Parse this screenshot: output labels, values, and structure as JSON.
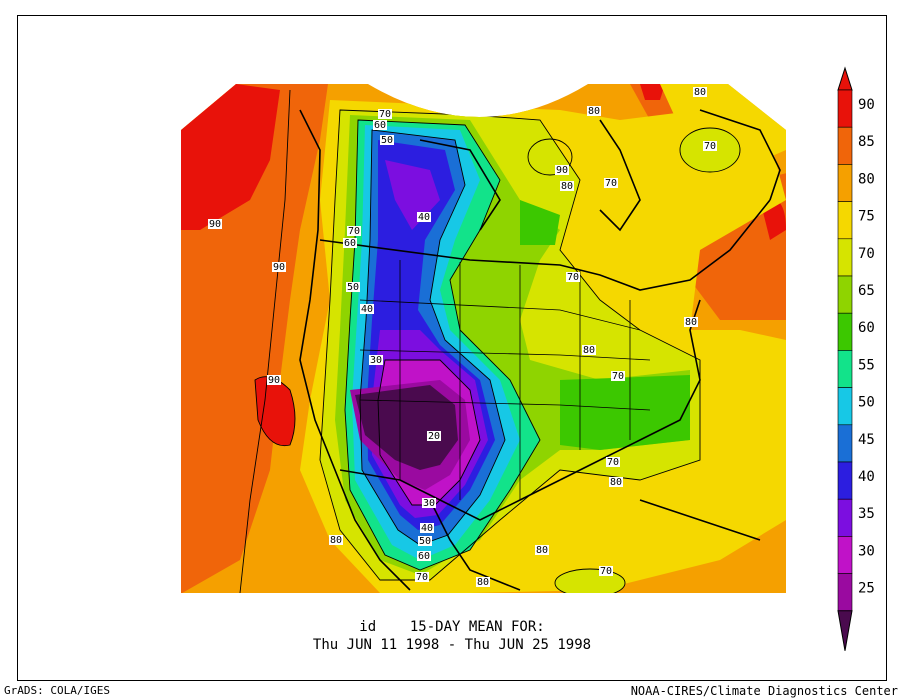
{
  "title": {
    "line1": "id    15-DAY MEAN FOR:",
    "line2": "Thu JUN 11 1998 - Thu JUN 25 1998"
  },
  "credits": {
    "left": "GrADS: COLA/IGES",
    "right": "NOAA-CIRES/Climate Diagnostics Center"
  },
  "legend": {
    "levels": [
      {
        "label": "90",
        "color": "#e8120a"
      },
      {
        "label": "85",
        "color": "#f0650a"
      },
      {
        "label": "80",
        "color": "#f5a000"
      },
      {
        "label": "75",
        "color": "#f5d800"
      },
      {
        "label": "70",
        "color": "#d6e400"
      },
      {
        "label": "65",
        "color": "#8fd400"
      },
      {
        "label": "60",
        "color": "#3cc800"
      },
      {
        "label": "55",
        "color": "#12e38a"
      },
      {
        "label": "50",
        "color": "#17c8e6"
      },
      {
        "label": "45",
        "color": "#1a6fd6"
      },
      {
        "label": "40",
        "color": "#2c1ee0"
      },
      {
        "label": "35",
        "color": "#7c0ee0"
      },
      {
        "label": "30",
        "color": "#c012c8"
      },
      {
        "label": "25",
        "color": "#9a0aa0"
      }
    ],
    "top_color": "#e8120a",
    "bottom_color": "#4a0a4e"
  },
  "contour_labels": [
    {
      "text": "90"
    },
    {
      "text": "90"
    },
    {
      "text": "90"
    },
    {
      "text": "70"
    },
    {
      "text": "60"
    },
    {
      "text": "50"
    },
    {
      "text": "40"
    },
    {
      "text": "70"
    },
    {
      "text": "60"
    },
    {
      "text": "50"
    },
    {
      "text": "40"
    },
    {
      "text": "30"
    },
    {
      "text": "20"
    },
    {
      "text": "30"
    },
    {
      "text": "40"
    },
    {
      "text": "50"
    },
    {
      "text": "60"
    },
    {
      "text": "70"
    },
    {
      "text": "80"
    },
    {
      "text": "80"
    },
    {
      "text": "90"
    },
    {
      "text": "80"
    },
    {
      "text": "80"
    },
    {
      "text": "70"
    },
    {
      "text": "80"
    },
    {
      "text": "70"
    },
    {
      "text": "70"
    },
    {
      "text": "80"
    },
    {
      "text": "70"
    },
    {
      "text": "80"
    },
    {
      "text": "70"
    },
    {
      "text": "80"
    },
    {
      "text": "80"
    },
    {
      "text": "70"
    },
    {
      "text": "80"
    }
  ]
}
